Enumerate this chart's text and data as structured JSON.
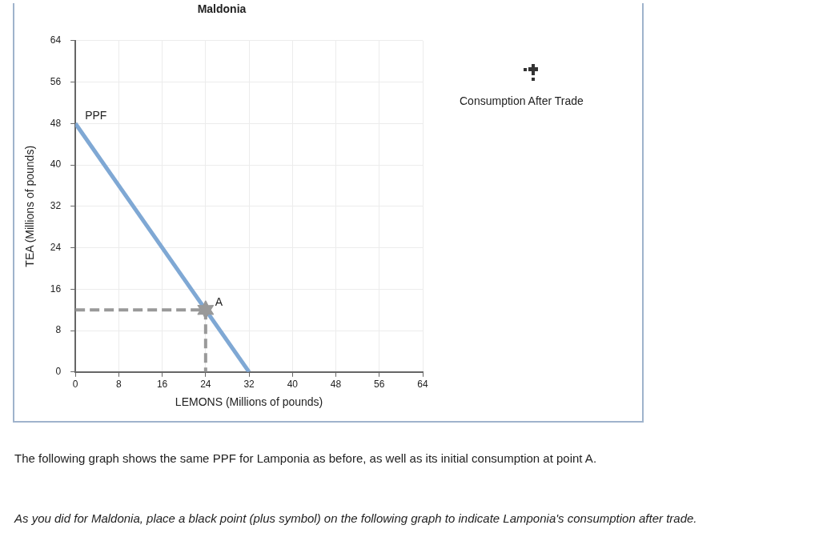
{
  "chart_data": {
    "type": "line",
    "title": "Maldonia",
    "xlabel": "LEMONS (Millions of pounds)",
    "ylabel": "TEA (Millions of pounds)",
    "xlim": [
      0,
      64
    ],
    "xticks": [
      0,
      8,
      16,
      24,
      32,
      40,
      48,
      56,
      64
    ],
    "ylim": [
      0,
      64
    ],
    "yticks": [
      0,
      8,
      16,
      24,
      32,
      40,
      48,
      56,
      64
    ],
    "grid": true,
    "legend": false,
    "series": [
      {
        "type": "line",
        "name": "PPF",
        "color": "#7fa8d4",
        "x": [
          0,
          32
        ],
        "values": [
          48,
          0
        ],
        "marker": "none",
        "line_style": "solid"
      },
      {
        "type": "line",
        "color": "#999999",
        "x": [
          0,
          24
        ],
        "values": [
          12,
          12
        ],
        "marker": "none",
        "line_style": "dashed"
      },
      {
        "type": "line",
        "color": "#999999",
        "x": [
          24,
          24
        ],
        "values": [
          12,
          0
        ],
        "marker": "none",
        "line_style": "dashed"
      },
      {
        "type": "scatter",
        "name": "A",
        "color": "#999999",
        "x": [
          24
        ],
        "values": [
          12
        ]
      }
    ],
    "annotations": [
      "Consumption After Trade",
      "The following graph shows the same PPF for Lamponia as before, as well as its initial consumption at point A.",
      "As you did for Maldonia, place a black point (plus symbol) on the following graph to indicate Lamponia's consumption after trade."
    ]
  }
}
